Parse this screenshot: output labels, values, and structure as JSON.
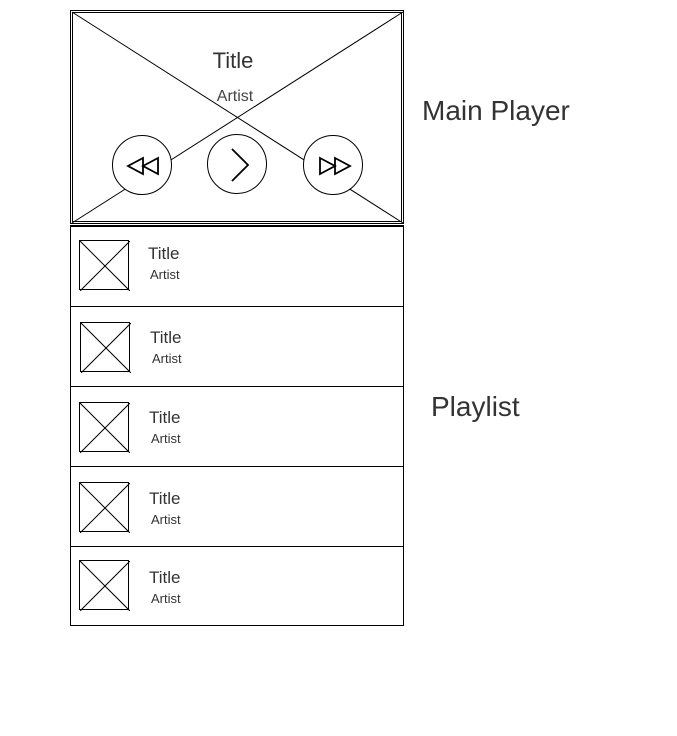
{
  "player": {
    "title": "Title",
    "artist": "Artist",
    "controls": {
      "rewind_icon": "rewind-icon",
      "play_icon": "play-icon",
      "fast_forward_icon": "fast-forward-icon"
    }
  },
  "playlist": {
    "items": [
      {
        "title": "Title",
        "artist": "Artist"
      },
      {
        "title": "Title",
        "artist": "Artist"
      },
      {
        "title": "Title",
        "artist": "Artist"
      },
      {
        "title": "Title",
        "artist": "Artist"
      },
      {
        "title": "Title",
        "artist": "Artist"
      }
    ]
  },
  "annotations": {
    "main_player": "Main Player",
    "playlist": "Playlist"
  },
  "colors": {
    "stroke": "#000000",
    "text": "#333333",
    "background": "#ffffff"
  }
}
